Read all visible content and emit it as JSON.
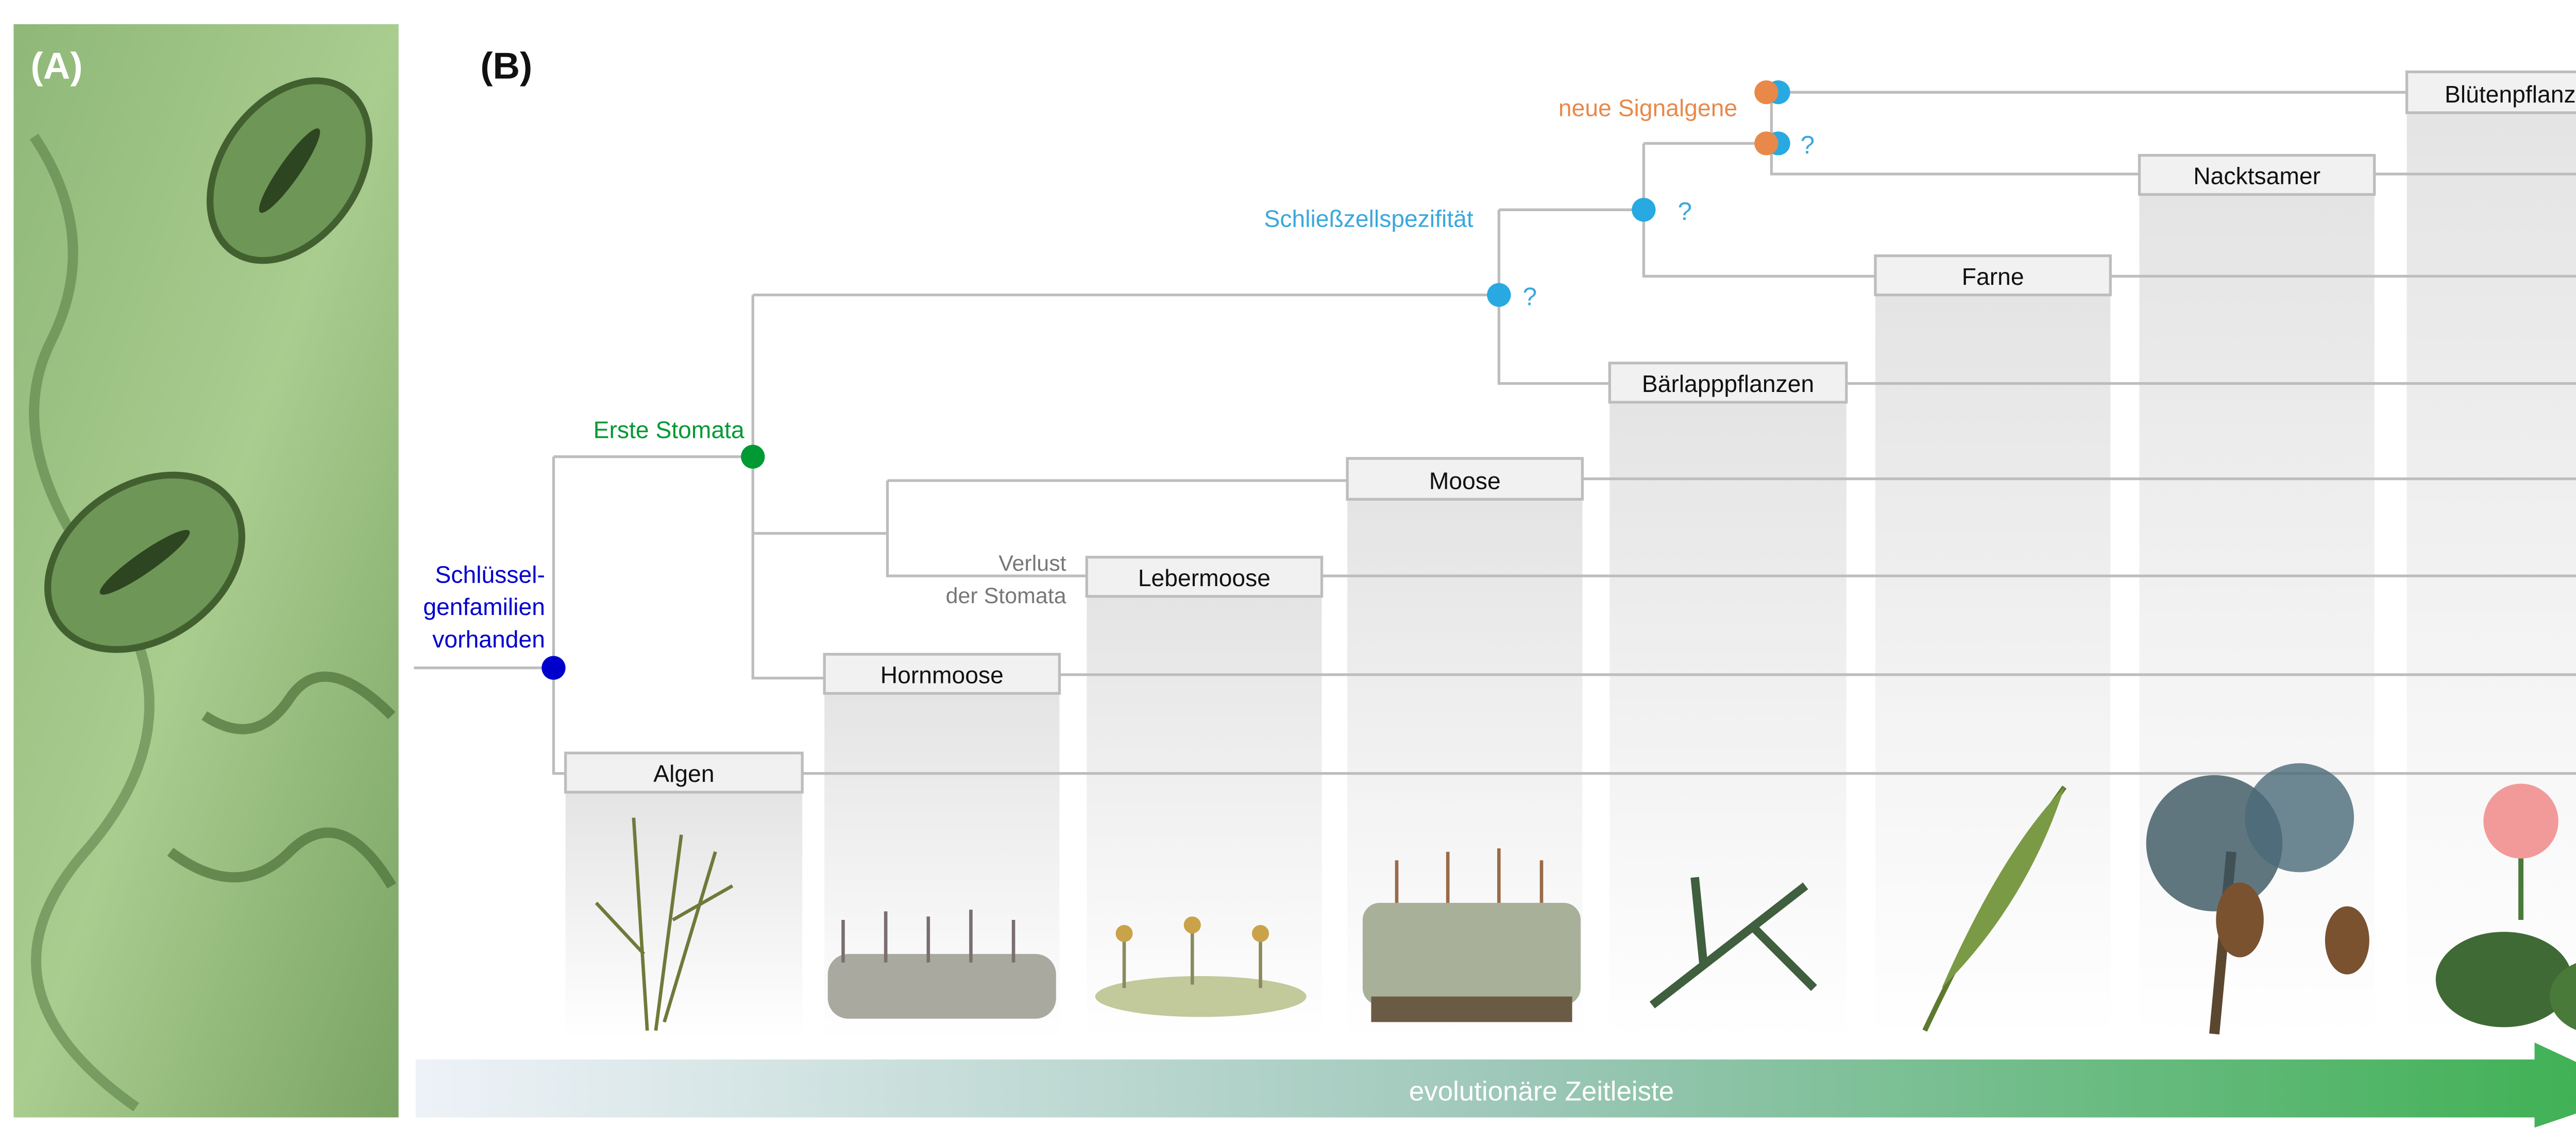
{
  "panels": {
    "a_label": "(A)",
    "b_label": "(B)"
  },
  "colors": {
    "key_genes": "#0000cc",
    "first_stomata": "#009933",
    "guard_cell": "#3aa8dc",
    "signal_genes": "#e8894a",
    "loss": "#777777",
    "timeline_start": "#eef2f8",
    "timeline_end": "#3bb04f"
  },
  "annotations": {
    "key_genes": [
      "Schlüssel-",
      "genfamilien",
      "vorhanden"
    ],
    "first_stomata": "Erste Stomata",
    "loss": [
      "Verlust",
      "der Stomata"
    ],
    "guard_cell": "Schließzellspezifität",
    "signal_genes": "neue Signalgene",
    "question": "?"
  },
  "taxa": [
    "Algen",
    "Hornmoose",
    "Lebermoose",
    "Moose",
    "Bärlapppflanzen",
    "Farne",
    "Nacktsamer",
    "Blütenpflanzen"
  ],
  "timeline": {
    "label": "evolutionäre Zeitleiste"
  },
  "plant_images": [
    "algae-illustration",
    "hornwort-illustration",
    "liverwort-illustration",
    "moss-illustration",
    "clubmoss-illustration",
    "fern-illustration",
    "pine-illustration",
    "geranium-illustration"
  ]
}
